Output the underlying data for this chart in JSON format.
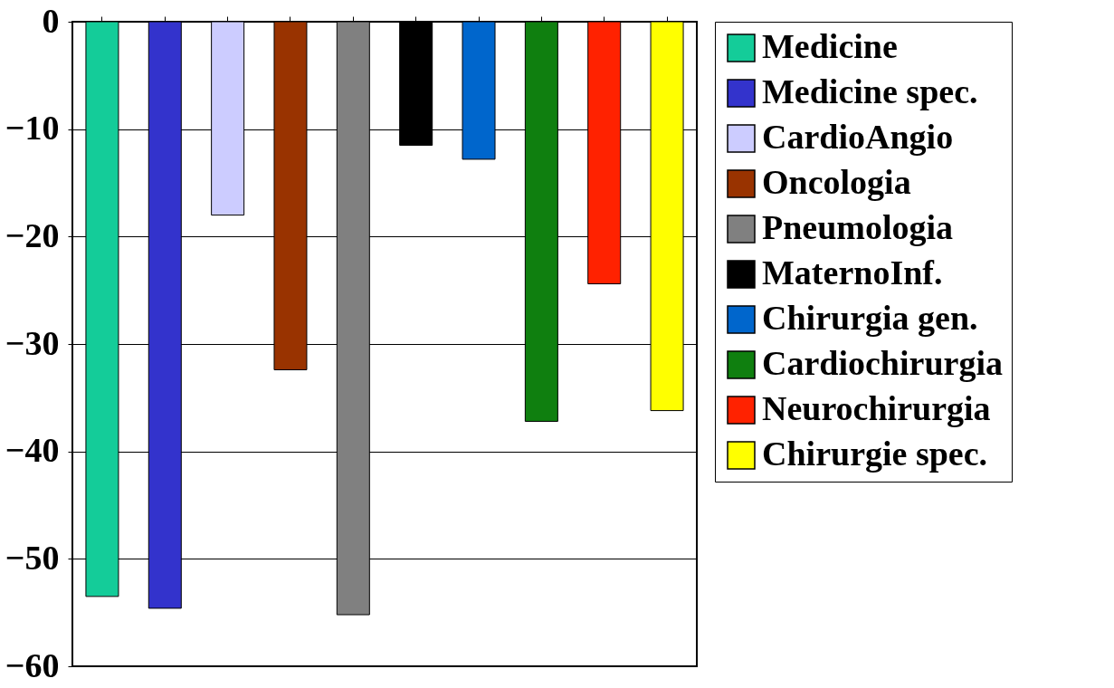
{
  "chart_data": {
    "type": "bar",
    "categories": [
      null
    ],
    "series": [
      {
        "name": "Medicine",
        "color": "#14cc99",
        "values": [
          -53.5
        ]
      },
      {
        "name": "Medicine spec.",
        "color": "#3333cc",
        "values": [
          -54.6
        ]
      },
      {
        "name": "CardioAngio",
        "color": "#ccccff",
        "values": [
          -18.0
        ]
      },
      {
        "name": "Oncologia",
        "color": "#993300",
        "values": [
          -32.4
        ]
      },
      {
        "name": "Pneumologia",
        "color": "#808080",
        "values": [
          -55.2
        ]
      },
      {
        "name": "MaternoInf.",
        "color": "#000000",
        "values": [
          -11.5
        ]
      },
      {
        "name": "Chirurgia gen.",
        "color": "#0066cc",
        "values": [
          -12.8
        ]
      },
      {
        "name": "Cardiochirurgia",
        "color": "#0f7f0f",
        "values": [
          -37.2
        ]
      },
      {
        "name": "Neurochirurgia",
        "color": "#ff2200",
        "values": [
          -24.4
        ]
      },
      {
        "name": "Chirurgie spec.",
        "color": "#ffff00",
        "values": [
          -36.2
        ]
      }
    ],
    "ylim": [
      -60,
      0
    ],
    "yticks": [
      -60,
      -50,
      -40,
      -30,
      -20,
      -10,
      0
    ],
    "grid": "y",
    "legend": "right",
    "tick_labels": "y"
  }
}
